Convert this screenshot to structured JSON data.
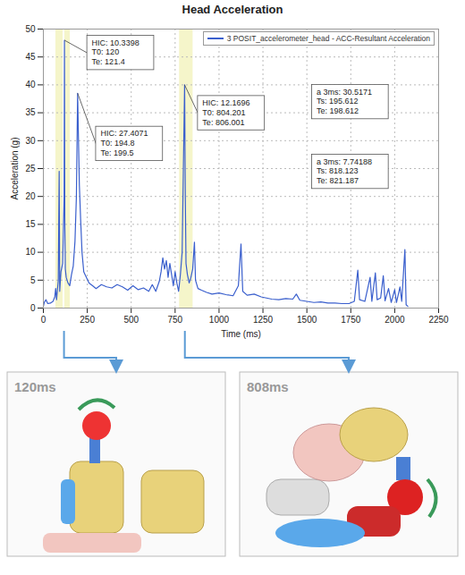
{
  "chart_data": {
    "type": "line",
    "title": "Head Acceleration",
    "x_label": "Time (ms)",
    "y_label": "Acceleration (g)",
    "x": [
      0,
      5,
      15,
      25,
      40,
      55,
      65,
      70,
      75,
      85,
      90,
      93,
      100,
      110,
      118,
      120,
      122,
      125,
      130,
      140,
      150,
      160,
      170,
      180,
      188,
      195,
      200,
      205,
      212,
      220,
      230,
      245,
      260,
      280,
      300,
      330,
      360,
      390,
      420,
      450,
      480,
      510,
      540,
      570,
      600,
      620,
      640,
      660,
      670,
      680,
      690,
      700,
      710,
      720,
      730,
      740,
      750,
      760,
      770,
      780,
      790,
      797,
      804,
      808,
      812,
      820,
      830,
      840,
      850,
      860,
      866,
      880,
      900,
      930,
      960,
      1000,
      1040,
      1080,
      1110,
      1125,
      1135,
      1160,
      1200,
      1240,
      1270,
      1300,
      1340,
      1380,
      1420,
      1440,
      1460,
      1500,
      1540,
      1580,
      1620,
      1660,
      1700,
      1740,
      1770,
      1790,
      1800,
      1830,
      1860,
      1870,
      1890,
      1900,
      1920,
      1935,
      1945,
      1965,
      1980,
      2000,
      2010,
      2030,
      2040,
      2058,
      2065,
      2075
    ],
    "series": [
      {
        "name": "3 POSIT_accelerometer_head - ACC-Resultant Acceleration",
        "color": "#3a5fcd",
        "values": [
          0.3,
          1.0,
          1.5,
          0.8,
          0.9,
          1.2,
          2,
          3.5,
          1.5,
          5,
          24.5,
          3,
          6.5,
          8,
          20,
          48,
          15,
          7,
          5.5,
          4.5,
          4,
          6,
          7.5,
          12,
          20,
          38.5,
          30,
          22,
          16,
          10,
          6.5,
          5.5,
          4.5,
          4,
          3.5,
          4.2,
          3.8,
          3.6,
          4.2,
          3.8,
          3.2,
          4,
          3.3,
          3.6,
          3,
          4.2,
          3,
          4.8,
          6.5,
          9,
          7,
          8.5,
          5.5,
          8,
          6,
          4,
          6.5,
          4.5,
          3,
          6,
          10,
          25,
          40,
          20,
          8,
          6,
          4.5,
          5.5,
          7,
          11.8,
          5,
          3.5,
          3.2,
          2.8,
          2.5,
          2.7,
          2.4,
          2.2,
          4,
          11.5,
          3,
          2.3,
          2.5,
          2,
          1.8,
          1.6,
          1.5,
          1.7,
          1.6,
          2.5,
          1.4,
          1.2,
          1.0,
          1.1,
          0.9,
          0.9,
          0.8,
          0.8,
          1.2,
          6.8,
          1.5,
          1.2,
          5.5,
          1.2,
          6.3,
          1.5,
          1.8,
          5.8,
          1.3,
          3.5,
          1,
          3.3,
          1,
          3.8,
          1.2,
          10.5,
          0.6,
          0.3
        ]
      }
    ],
    "xlim": [
      0,
      2250
    ],
    "ylim": [
      0,
      50
    ],
    "xticks": [
      0,
      250,
      500,
      750,
      1000,
      1250,
      1500,
      1750,
      2000,
      2250
    ],
    "yticks": [
      0,
      5,
      10,
      15,
      20,
      25,
      30,
      35,
      40,
      45,
      50
    ],
    "grid": true,
    "legend": "top-right",
    "highlighted_ranges": [
      [
        71,
        112
      ],
      [
        122,
        153
      ],
      [
        775,
        852
      ]
    ],
    "annotations": [
      {
        "x": 120,
        "y": 48,
        "lines": [
          "HIC: 10.3398",
          "T0: 120",
          "Te: 121.4"
        ]
      },
      {
        "x": 195,
        "y": 38.5,
        "lines": [
          "HIC: 27.4071",
          "T0: 194.8",
          "Te: 199.5"
        ]
      },
      {
        "x": 804,
        "y": 40,
        "lines": [
          "HIC: 12.1696",
          "T0: 804.201",
          "Te: 806.001"
        ]
      },
      {
        "lines": [
          "a 3ms: 30.5171",
          "Ts: 195.612",
          "Te: 198.612"
        ]
      },
      {
        "lines": [
          "a 3ms: 7.74188",
          "Ts: 818.123",
          "Te: 821.187"
        ]
      }
    ]
  },
  "panels": [
    {
      "label": "120ms",
      "time": 120
    },
    {
      "label": "808ms",
      "time": 808
    }
  ]
}
